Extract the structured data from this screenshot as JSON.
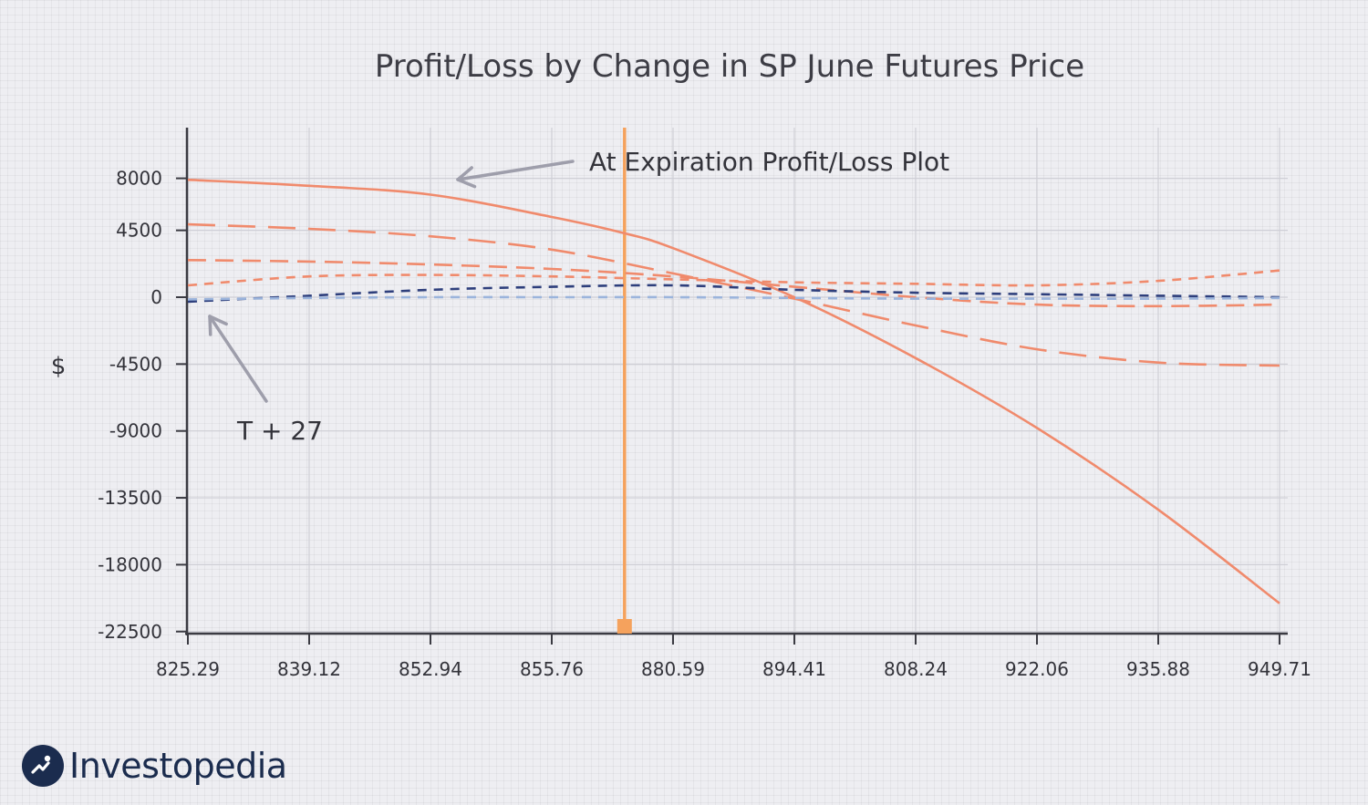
{
  "brand": {
    "name": "Investopedia",
    "color": "#1b2c4e",
    "icon": "investopedia-logo-icon"
  },
  "chart_data": {
    "type": "line",
    "title": "Profit/Loss by Change in SP June Futures Price",
    "xlabel": "",
    "ylabel": "$",
    "x_tick_labels": [
      "825.29",
      "839.12",
      "852.94",
      "855.76",
      "880.59",
      "894.41",
      "808.24",
      "922.06",
      "935.88",
      "949.71"
    ],
    "y_ticks": [
      8000,
      4500,
      0,
      -4500,
      -9000,
      -13500,
      -18000,
      -22500
    ],
    "ylim": [
      -22500,
      10000
    ],
    "grid": true,
    "legend": "none",
    "vertical_marker": {
      "x_index": 3.6,
      "color": "#f5a25d"
    },
    "series": [
      {
        "style": "solid",
        "color": "#f08a6c",
        "x_index": [
          0,
          1,
          2,
          3,
          3.6,
          4,
          5,
          6,
          7,
          8,
          9
        ],
        "values": [
          7900,
          7500,
          6900,
          5400,
          4300,
          3300,
          0,
          -4100,
          -8800,
          -14300,
          -20600
        ]
      },
      {
        "style": "long-dash",
        "color": "#f08a6c",
        "x_index": [
          0,
          1,
          2,
          3,
          4,
          5,
          6,
          7,
          8,
          9
        ],
        "values": [
          4900,
          4600,
          4100,
          3200,
          1600,
          -100,
          -1900,
          -3500,
          -4400,
          -4600
        ]
      },
      {
        "style": "dash",
        "color": "#f08a6c",
        "x_index": [
          0,
          1,
          2,
          3,
          4,
          5,
          6,
          7,
          8,
          9
        ],
        "values": [
          2500,
          2400,
          2200,
          1900,
          1400,
          700,
          0,
          -500,
          -600,
          -500
        ]
      },
      {
        "style": "short-dash",
        "color": "#f08a6c",
        "x_index": [
          0,
          1,
          2,
          3,
          4,
          5,
          6,
          7,
          8,
          9
        ],
        "values": [
          800,
          1400,
          1500,
          1400,
          1200,
          1000,
          900,
          800,
          1100,
          1800
        ]
      },
      {
        "style": "short-dash",
        "color": "#2e3f7c",
        "x_index": [
          0,
          1,
          2,
          3,
          4,
          5,
          6,
          7,
          8,
          9
        ],
        "values": [
          -300,
          100,
          500,
          700,
          800,
          500,
          300,
          200,
          100,
          0
        ]
      },
      {
        "style": "short-dash",
        "color": "#9bb4dc",
        "x_index": [
          0,
          1,
          2,
          3,
          4,
          5,
          6,
          7,
          8,
          9
        ],
        "values": [
          -150,
          -50,
          0,
          0,
          0,
          -50,
          -100,
          -100,
          -100,
          -50
        ]
      }
    ],
    "annotations": [
      {
        "text": "At Expiration Profit/Loss Plot",
        "target_series": 0,
        "target_x_index": 2.2
      },
      {
        "text": "T + 27",
        "target_series": 5,
        "target_x_index": 0.2
      }
    ]
  }
}
